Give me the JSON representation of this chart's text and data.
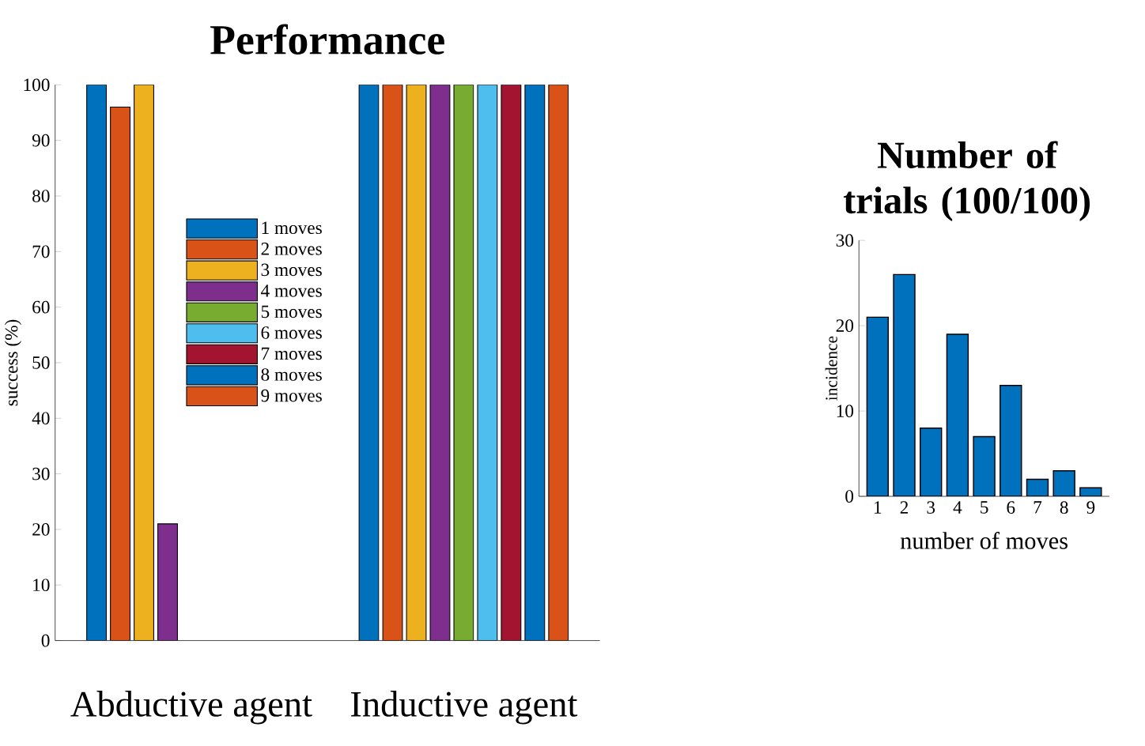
{
  "chart_data": [
    {
      "type": "bar",
      "title": "Performance",
      "ylabel": "success (%)",
      "categories": [
        "Abductive agent",
        "Inductive agent"
      ],
      "series": [
        {
          "name": "1 moves",
          "color": "#0072bd",
          "values": [
            100,
            100
          ]
        },
        {
          "name": "2 moves",
          "color": "#d95319",
          "values": [
            96,
            100
          ]
        },
        {
          "name": "3 moves",
          "color": "#edb120",
          "values": [
            100,
            100
          ]
        },
        {
          "name": "4 moves",
          "color": "#7e2f8e",
          "values": [
            21,
            100
          ]
        },
        {
          "name": "5 moves",
          "color": "#77ac30",
          "values": [
            null,
            100
          ]
        },
        {
          "name": "6 moves",
          "color": "#4dbeee",
          "values": [
            null,
            100
          ]
        },
        {
          "name": "7 moves",
          "color": "#a2142f",
          "values": [
            null,
            100
          ]
        },
        {
          "name": "8 moves",
          "color": "#0072bd",
          "values": [
            null,
            100
          ]
        },
        {
          "name": "9 moves",
          "color": "#d95319",
          "values": [
            null,
            100
          ]
        }
      ],
      "ylim": [
        0,
        100
      ],
      "yticks": [
        0,
        10,
        20,
        30,
        40,
        50,
        60,
        70,
        80,
        90,
        100
      ],
      "legend": "center"
    },
    {
      "type": "bar",
      "title": "Number of trials (100/100)",
      "xlabel": "number of moves",
      "ylabel": "incidence",
      "categories": [
        "1",
        "2",
        "3",
        "4",
        "5",
        "6",
        "7",
        "8",
        "9"
      ],
      "values": [
        21,
        26,
        8,
        19,
        7,
        13,
        2,
        3,
        1
      ],
      "color": "#0072bd",
      "ylim": [
        0,
        30
      ],
      "yticks": [
        0,
        10,
        20,
        30
      ]
    }
  ]
}
